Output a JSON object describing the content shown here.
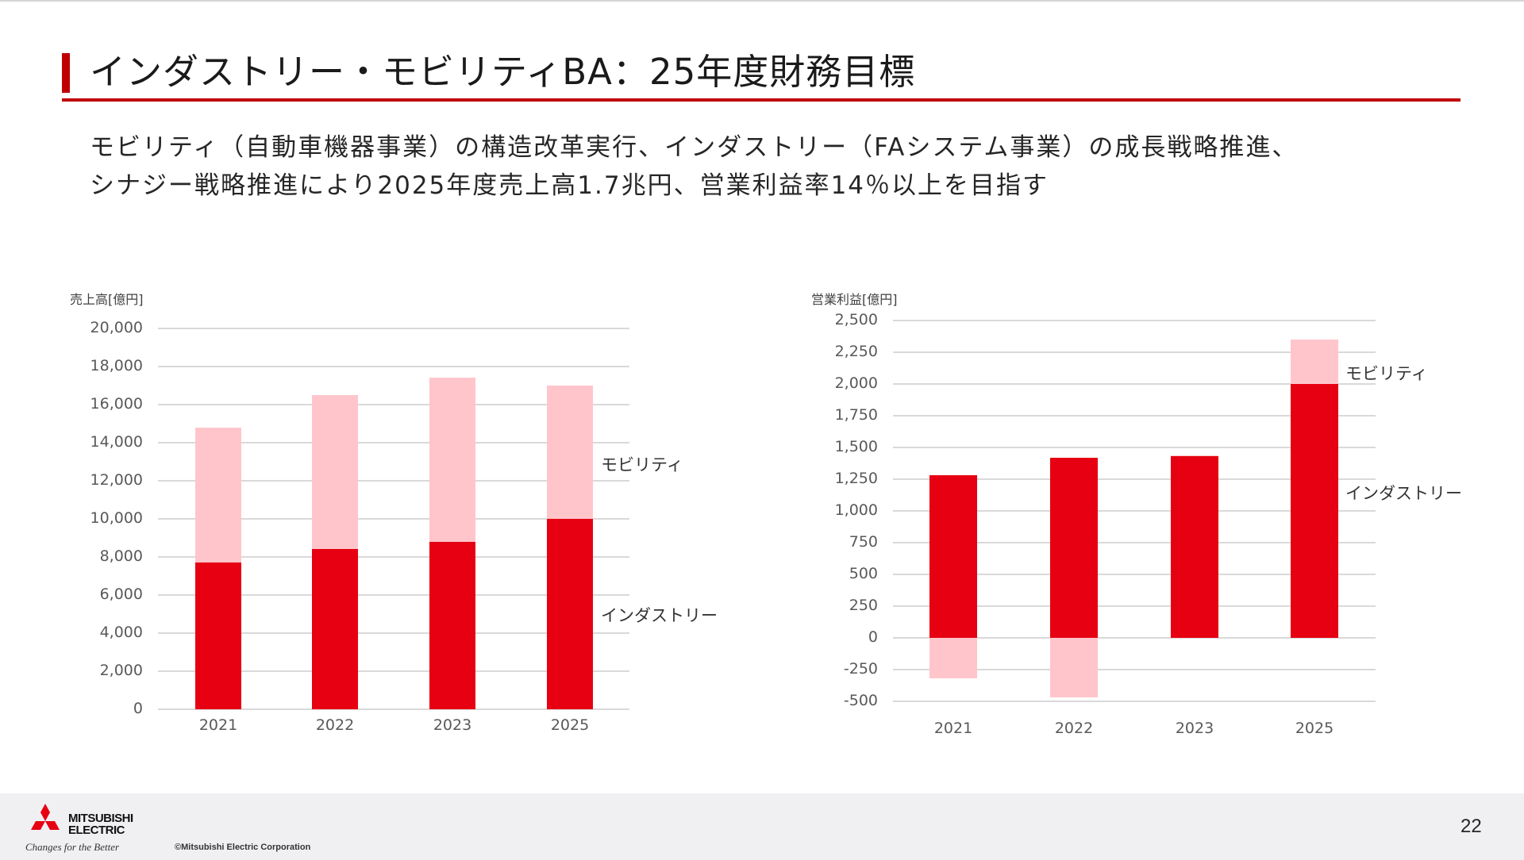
{
  "slide": {
    "title": "インダストリー・モビリティBA：25年度財務目標",
    "subtitle_lines": [
      "モビリティ（自動車機器事業）の構造改革実行、インダストリー（FAシステム事業）の成長戦略推進、",
      "シナジー戦略推進により2025年度売上高1.7兆円、営業利益率14％以上を目指す"
    ],
    "page_number": "22"
  },
  "footer": {
    "logo_line1": "MITSUBISHI",
    "logo_line2": "ELECTRIC",
    "tagline": "Changes for the Better",
    "copyright": "©Mitsubishi Electric Corporation"
  },
  "colors": {
    "accent": "#c00000",
    "industry": "#e60012",
    "mobility": "#ffc5cb",
    "grid": "#d9d9d9",
    "footer_bg": "#f0f0f2"
  },
  "chart_data": [
    {
      "type": "bar",
      "stacked": true,
      "title": "売上高[億円]",
      "ylabel": "売上高[億円]",
      "xlabel": "",
      "categories": [
        "2021",
        "2022",
        "2023",
        "2025"
      ],
      "series": [
        {
          "name": "インダストリー",
          "values": [
            7700,
            8400,
            8800,
            10000
          ]
        },
        {
          "name": "モビリティ",
          "values": [
            7100,
            8100,
            8600,
            7000
          ]
        }
      ],
      "totals": [
        14800,
        16500,
        17400,
        17000
      ],
      "ylim": [
        0,
        20000
      ],
      "yticks": [
        "0",
        "2,000",
        "4,000",
        "6,000",
        "8,000",
        "10,000",
        "12,000",
        "14,000",
        "16,000",
        "18,000",
        "20,000"
      ],
      "grid": true,
      "legend": "inline-right"
    },
    {
      "type": "bar",
      "stacked": true,
      "title": "営業利益[億円]",
      "ylabel": "営業利益[億円]",
      "xlabel": "",
      "categories": [
        "2021",
        "2022",
        "2023",
        "2025"
      ],
      "series": [
        {
          "name": "インダストリー",
          "values": [
            1280,
            1420,
            1430,
            2000
          ]
        },
        {
          "name": "モビリティ",
          "values": [
            -320,
            -470,
            10,
            350
          ]
        }
      ],
      "ylim": [
        -500,
        2500
      ],
      "yticks": [
        "-500",
        "-250",
        "0",
        "250",
        "500",
        "750",
        "1,000",
        "1,250",
        "1,500",
        "1,750",
        "2,000",
        "2,250",
        "2,500"
      ],
      "grid": true,
      "legend": "inline-right"
    }
  ]
}
